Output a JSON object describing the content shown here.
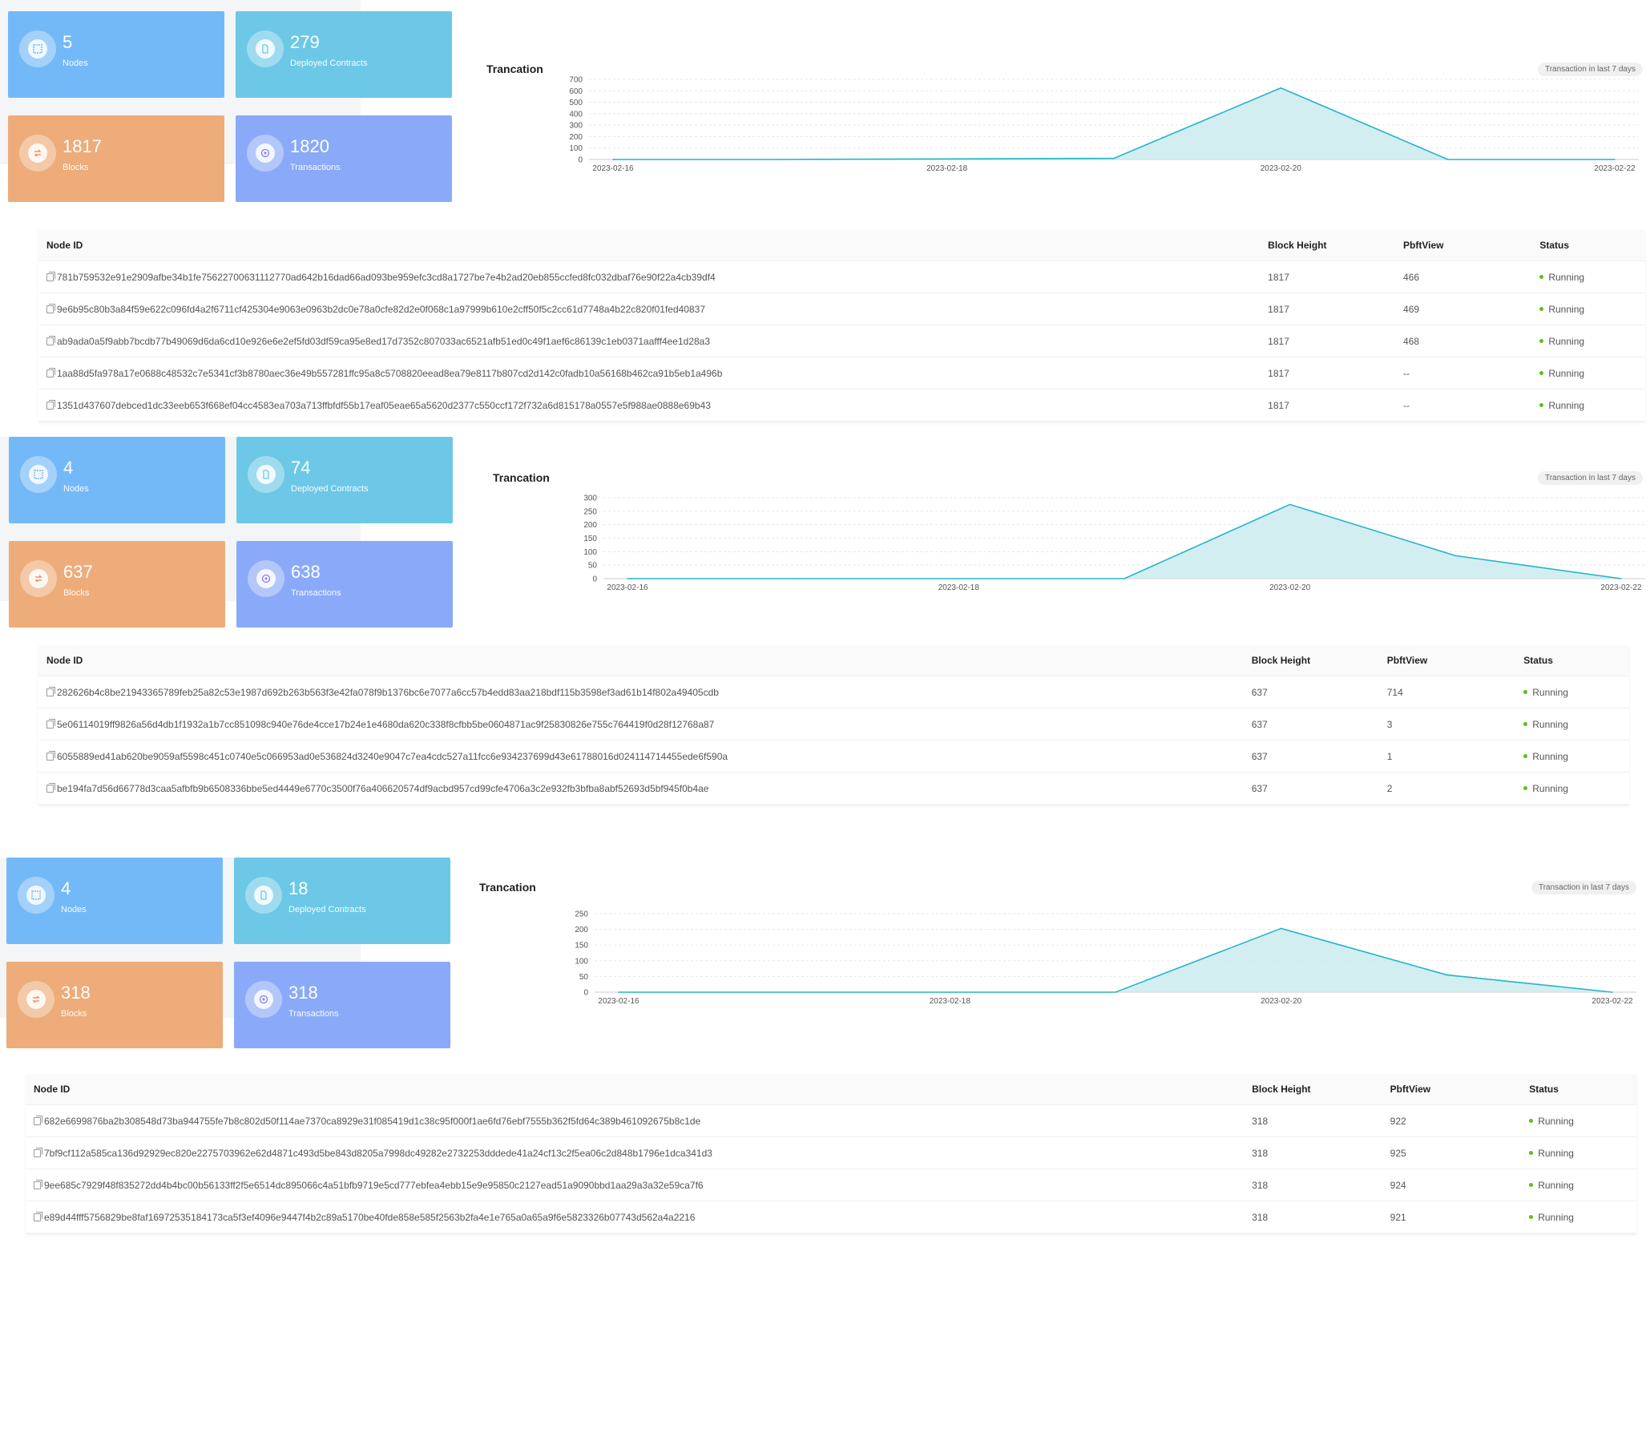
{
  "colors": {
    "nodes": "#74b9f7",
    "contracts": "#6cc8e6",
    "blocks": "#edac79",
    "transactions": "#8aaaf9",
    "line": "#23b5c6",
    "area": "#c7eaee",
    "running_dot": "#52c41a"
  },
  "columns": {
    "node_id": "Node ID",
    "block_height": "Block Height",
    "pbft_view": "PbftView",
    "status": "Status"
  },
  "sections": [
    {
      "stats": {
        "nodes": {
          "value": "5",
          "label": "Nodes",
          "icon": "nodes-icon"
        },
        "contracts": {
          "value": "279",
          "label": "Deployed Contracts",
          "icon": "contract-icon"
        },
        "blocks": {
          "value": "1817",
          "label": "Blocks",
          "icon": "blocks-icon"
        },
        "transactions": {
          "value": "1820",
          "label": "Transactions",
          "icon": "transactions-icon"
        }
      },
      "chart": {
        "title": "Trancation",
        "badge": "Transaction in last 7 days",
        "yticks": [
          "0",
          "100",
          "200",
          "300",
          "400",
          "500",
          "600",
          "700"
        ],
        "xticks": [
          "2023-02-16",
          "2023-02-18",
          "2023-02-20",
          "2023-02-22"
        ]
      },
      "rows": [
        {
          "id": "781b759532e91e2909afbe34b1fe75622700631112770ad642b16dad66ad093be959efc3cd8a1727be7e4b2ad20eb855ccfed8fc032dbaf76e90f22a4cb39df4",
          "height": "1817",
          "view": "466",
          "status": "Running"
        },
        {
          "id": "9e6b95c80b3a84f59e622c096fd4a2f6711cf425304e9063e0963b2dc0e78a0cfe82d2e0f068c1a97999b610e2cff50f5c2cc61d7748a4b22c820f01fed40837",
          "height": "1817",
          "view": "469",
          "status": "Running"
        },
        {
          "id": "ab9ada0a5f9abb7bcdb77b49069d6da6cd10e926e6e2ef5fd03df59ca95e8ed17d7352c807033ac6521afb51ed0c49f1aef6c86139c1eb0371aafff4ee1d28a3",
          "height": "1817",
          "view": "468",
          "status": "Running"
        },
        {
          "id": "1aa88d5fa978a17e0688c48532c7e5341cf3b8780aec36e49b557281ffc95a8c5708820eead8ea79e8117b807cd2d142c0fadb10a56168b462ca91b5eb1a496b",
          "height": "1817",
          "view": "--",
          "status": "Running"
        },
        {
          "id": "1351d437607debced1dc33eeb653f668ef04cc4583ea703a713ffbfdf55b17eaf05eae65a5620d2377c550ccf172f732a6d815178a0557e5f988ae0888e69b43",
          "height": "1817",
          "view": "--",
          "status": "Running"
        }
      ]
    },
    {
      "stats": {
        "nodes": {
          "value": "4",
          "label": "Nodes",
          "icon": "nodes-icon"
        },
        "contracts": {
          "value": "74",
          "label": "Deployed Contracts",
          "icon": "contract-icon"
        },
        "blocks": {
          "value": "637",
          "label": "Blocks",
          "icon": "blocks-icon"
        },
        "transactions": {
          "value": "638",
          "label": "Transactions",
          "icon": "transactions-icon"
        }
      },
      "chart": {
        "title": "Trancation",
        "badge": "Transaction in last 7 days",
        "yticks": [
          "0",
          "50",
          "100",
          "150",
          "200",
          "250",
          "300"
        ],
        "xticks": [
          "2023-02-16",
          "2023-02-18",
          "2023-02-20",
          "2023-02-22"
        ]
      },
      "rows": [
        {
          "id": "282626b4c8be21943365789feb25a82c53e1987d692b263b563f3e42fa078f9b1376bc6e7077a6cc57b4edd83aa218bdf115b3598ef3ad61b14f802a49405cdb",
          "height": "637",
          "view": "714",
          "status": "Running"
        },
        {
          "id": "5e06114019ff9826a56d4db1f1932a1b7cc851098c940e76de4cce17b24e1e4680da620c338f8cfbb5be0604871ac9f25830826e755c764419f0d28f12768a87",
          "height": "637",
          "view": "3",
          "status": "Running"
        },
        {
          "id": "6055889ed41ab620be9059af5598c451c0740e5c066953ad0e536824d3240e9047c7ea4cdc527a11fcc6e934237699d43e61788016d024114714455ede6f590a",
          "height": "637",
          "view": "1",
          "status": "Running"
        },
        {
          "id": "be194fa7d56d66778d3caa5afbfb9b6508336bbe5ed4449e6770c3500f76a406620574df9acbd957cd99cfe4706a3c2e932fb3bfba8abf52693d5bf945f0b4ae",
          "height": "637",
          "view": "2",
          "status": "Running"
        }
      ]
    },
    {
      "stats": {
        "nodes": {
          "value": "4",
          "label": "Nodes",
          "icon": "nodes-icon"
        },
        "contracts": {
          "value": "18",
          "label": "Deployed Contracts",
          "icon": "contract-icon"
        },
        "blocks": {
          "value": "318",
          "label": "Blocks",
          "icon": "blocks-icon"
        },
        "transactions": {
          "value": "318",
          "label": "Transactions",
          "icon": "transactions-icon"
        }
      },
      "chart": {
        "title": "Trancation",
        "badge": "Transaction in last 7 days",
        "yticks": [
          "0",
          "50",
          "100",
          "150",
          "200",
          "250"
        ],
        "xticks": [
          "2023-02-16",
          "2023-02-18",
          "2023-02-20",
          "2023-02-22"
        ]
      },
      "rows": [
        {
          "id": "682e6699876ba2b308548d73ba944755fe7b8c802d50f114ae7370ca8929e31f085419d1c38c95f000f1ae6fd76ebf7555b362f5fd64c389b461092675b8c1de",
          "height": "318",
          "view": "922",
          "status": "Running"
        },
        {
          "id": "7bf9cf112a585ca136d92929ec820e2275703962e62d4871c493d5be843d8205a7998dc49282e2732253dddede41a24cf13c2f5ea06c2d848b1796e1dca341d3",
          "height": "318",
          "view": "925",
          "status": "Running"
        },
        {
          "id": "9ee685c7929f48f835272dd4b4bc00b56133ff2f5e6514dc895066c4a51bfb9719e5cd777ebfea4ebb15e9e95850c2127ead51a9090bbd1aa29a3a32e59ca7f6",
          "height": "318",
          "view": "924",
          "status": "Running"
        },
        {
          "id": "e89d44fff5756829be8faf16972535184173ca5f3ef4096e9447f4b2c89a5170be40fde858e585f2563b2fa4e1e765a0a65a9f6e5823326b07743d562a4a2216",
          "height": "318",
          "view": "921",
          "status": "Running"
        }
      ]
    }
  ],
  "chart_data": [
    {
      "type": "area",
      "x": [
        "2023-02-16",
        "2023-02-17",
        "2023-02-18",
        "2023-02-19",
        "2023-02-20",
        "2023-02-21",
        "2023-02-22"
      ],
      "series": [
        {
          "values": [
            0,
            0,
            5,
            10,
            625,
            0,
            0
          ]
        }
      ],
      "ylim": [
        0,
        700
      ],
      "grid": true
    },
    {
      "type": "area",
      "x": [
        "2023-02-16",
        "2023-02-17",
        "2023-02-18",
        "2023-02-19",
        "2023-02-20",
        "2023-02-21",
        "2023-02-22"
      ],
      "series": [
        {
          "values": [
            0,
            0,
            0,
            0,
            275,
            85,
            0
          ]
        }
      ],
      "ylim": [
        0,
        300
      ],
      "grid": true
    },
    {
      "type": "area",
      "x": [
        "2023-02-16",
        "2023-02-17",
        "2023-02-18",
        "2023-02-19",
        "2023-02-20",
        "2023-02-21",
        "2023-02-22"
      ],
      "series": [
        {
          "values": [
            0,
            0,
            0,
            0,
            203,
            55,
            0
          ]
        }
      ],
      "ylim": [
        0,
        250
      ],
      "grid": true
    }
  ]
}
